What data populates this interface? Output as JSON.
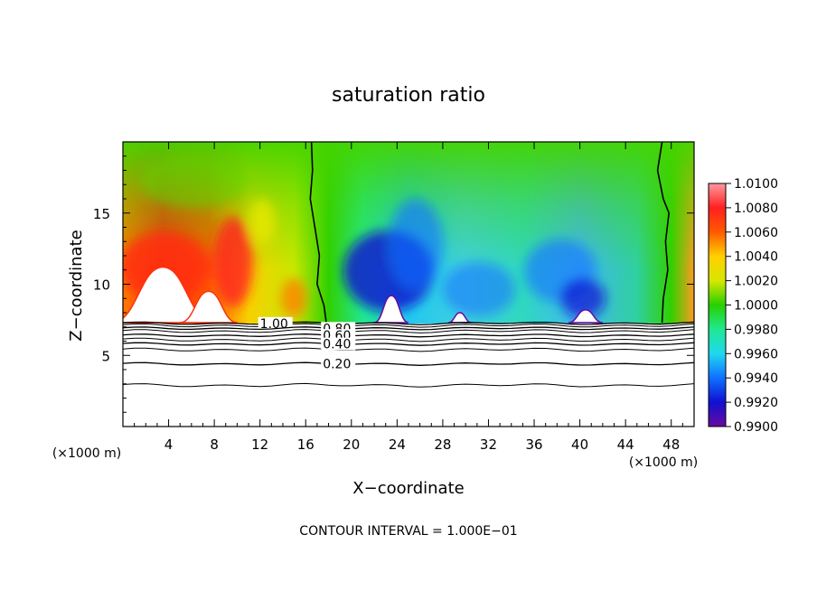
{
  "chart_data": {
    "type": "heatmap",
    "title": "saturation ratio",
    "xlabel": "X−coordinate",
    "ylabel": "Z−coordinate",
    "x_unit_left": "(×1000 m)",
    "x_unit_right": "(×1000 m)",
    "xlim": [
      0,
      50
    ],
    "ylim": [
      0,
      20
    ],
    "x_ticks": [
      4,
      8,
      12,
      16,
      20,
      24,
      28,
      32,
      36,
      40,
      44,
      48
    ],
    "y_ticks": [
      5,
      10,
      15
    ],
    "colorbar": {
      "values": [
        "1.0100",
        "1.0080",
        "1.0060",
        "1.0040",
        "1.0020",
        "1.0000",
        "0.9980",
        "0.9960",
        "0.9940",
        "0.9920",
        "0.9900"
      ],
      "colors": [
        "#ff9aa0",
        "#ff2020",
        "#ff5a00",
        "#ffd000",
        "#d8e600",
        "#28d000",
        "#20e890",
        "#20d8f0",
        "#1070ff",
        "#1010d0",
        "#6a0aa0"
      ]
    },
    "boundary_z": 7.3,
    "terrain_peaks": [
      {
        "x": 3.5,
        "z": 11.2,
        "w": 4.5
      },
      {
        "x": 7.5,
        "z": 9.5,
        "w": 2.5
      },
      {
        "x": 23.5,
        "z": 9.2,
        "w": 1.5
      },
      {
        "x": 29.5,
        "z": 8.0,
        "w": 1.0
      },
      {
        "x": 40.5,
        "z": 8.2,
        "w": 1.5
      }
    ],
    "contour_levels": [
      {
        "label": "1.00",
        "z": 7.25,
        "label_x": 12.0
      },
      {
        "label": "0.80",
        "z": 6.9,
        "label_x": 17.5
      },
      {
        "label": "0.60",
        "z": 6.4,
        "label_x": 17.5
      },
      {
        "label": "0.40",
        "z": 5.8,
        "label_x": 17.5
      },
      {
        "label": "0.20",
        "z": 4.4,
        "label_x": 17.5
      }
    ],
    "extra_contour_z": [
      7.1,
      6.7,
      6.1,
      5.4,
      2.9
    ],
    "unity_contours": [
      [
        [
          16.5,
          20
        ],
        [
          16.6,
          18
        ],
        [
          16.4,
          16
        ],
        [
          16.8,
          14
        ],
        [
          17.2,
          12
        ],
        [
          17.0,
          10
        ],
        [
          17.6,
          8.5
        ],
        [
          17.8,
          7.3
        ]
      ],
      [
        [
          47.2,
          20
        ],
        [
          46.8,
          18
        ],
        [
          47.3,
          16
        ],
        [
          47.8,
          15
        ],
        [
          47.5,
          13
        ],
        [
          47.7,
          11
        ],
        [
          47.3,
          9
        ],
        [
          47.2,
          7.3
        ]
      ]
    ],
    "footer": "CONTOUR INTERVAL = 1.000E−01"
  }
}
